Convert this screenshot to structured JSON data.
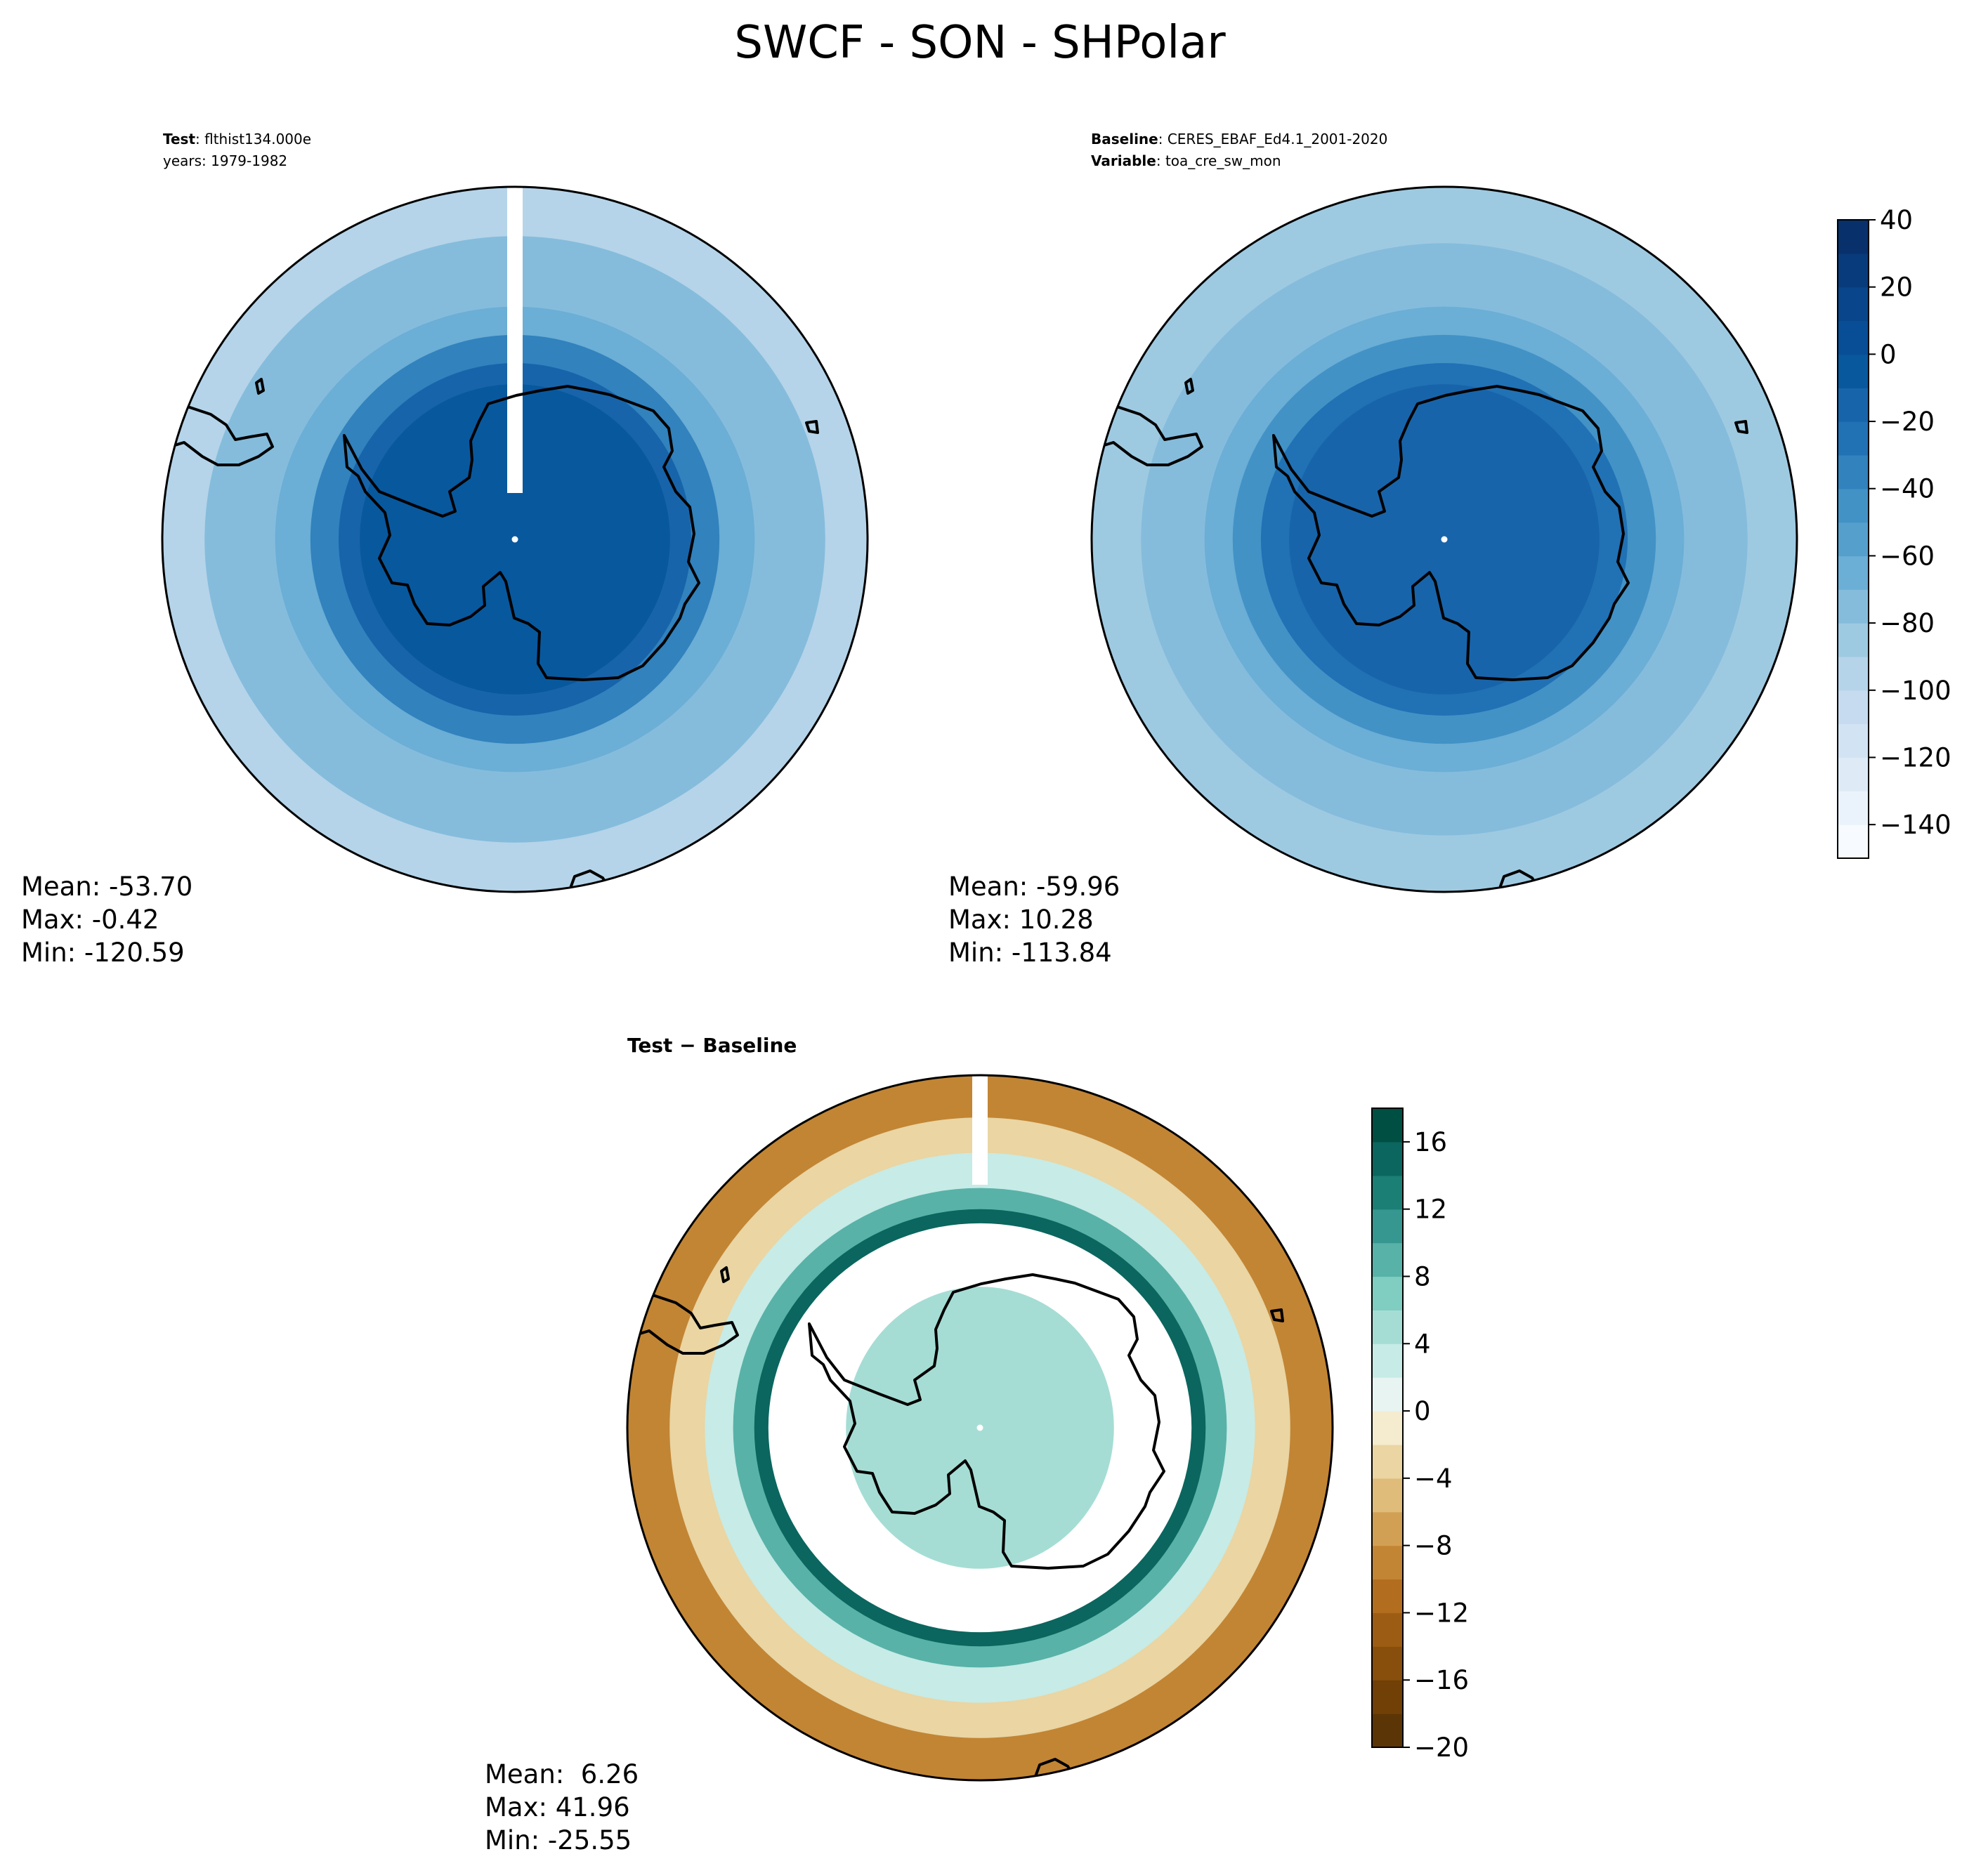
{
  "title": "SWCF - SON - SHPolar",
  "chart_data": [
    {
      "type": "polar-contour-map",
      "panel": "test",
      "header": [
        {
          "bold": "Test",
          "text": ": flthist134.000e"
        },
        {
          "bold": "",
          "text": "years: 1979-1982"
        }
      ],
      "stats": {
        "mean": "Mean: -53.70",
        "max": "Max: -0.42",
        "min": "Min: -120.59"
      },
      "rings": [
        {
          "value": -95,
          "rx": 0.49,
          "ry": 0.49
        },
        {
          "value": -75,
          "rx": 0.44,
          "ry": 0.43
        },
        {
          "value": -70,
          "rx": 0.34,
          "ry": 0.33
        },
        {
          "value": -40,
          "rx": 0.29,
          "ry": 0.29
        },
        {
          "value": -20,
          "rx": 0.25,
          "ry": 0.25
        },
        {
          "value": -10,
          "rx": 0.22,
          "ry": 0.22
        }
      ],
      "mask_gap": true
    },
    {
      "type": "polar-contour-map",
      "panel": "baseline",
      "header": [
        {
          "bold": "Baseline",
          "text": ": CERES_EBAF_Ed4.1_2001-2020"
        },
        {
          "bold": "Variable",
          "text": ": toa_cre_sw_mon"
        }
      ],
      "stats": {
        "mean": "Mean: -59.96",
        "max": "Max: 10.28",
        "min": "Min: -113.84"
      },
      "rings": [
        {
          "value": -90,
          "rx": 0.49,
          "ry": 0.49
        },
        {
          "value": -78,
          "rx": 0.43,
          "ry": 0.42
        },
        {
          "value": -68,
          "rx": 0.34,
          "ry": 0.33
        },
        {
          "value": -45,
          "rx": 0.3,
          "ry": 0.29
        },
        {
          "value": -25,
          "rx": 0.26,
          "ry": 0.25
        },
        {
          "value": -12,
          "rx": 0.22,
          "ry": 0.22
        }
      ],
      "mask_gap": false,
      "colorbar": {
        "min": -150,
        "max": 40,
        "step": 10,
        "ticks": [
          40,
          20,
          0,
          -20,
          -40,
          -60,
          -80,
          -100,
          -120,
          -140
        ],
        "tick_labels": [
          "40",
          "20",
          "0",
          "−20",
          "−40",
          "−60",
          "−80",
          "−100",
          "−120",
          "−140"
        ],
        "colors": [
          "#f7fbff",
          "#eaf3fb",
          "#deebf7",
          "#d2e3f3",
          "#c6dbef",
          "#b5d4e9",
          "#9ecae1",
          "#85bcdc",
          "#6baed6",
          "#559fcd",
          "#4292c6",
          "#3182bd",
          "#2171b5",
          "#1864aa",
          "#08589e",
          "#084e96",
          "#08458a",
          "#083b7c",
          "#08306b"
        ]
      }
    },
    {
      "type": "polar-contour-map",
      "panel": "difference",
      "header": [
        {
          "bold": "Test − Baseline",
          "text": ""
        }
      ],
      "stats": {
        "mean": "Mean:  6.26",
        "max": "Max: 41.96",
        "min": "Min: -25.55"
      },
      "rings": [
        {
          "value": -9,
          "rx": 0.5,
          "ry": 0.5
        },
        {
          "value": -3,
          "rx": 0.44,
          "ry": 0.44
        },
        {
          "value": 3,
          "rx": 0.39,
          "ry": 0.39
        },
        {
          "value": 9,
          "rx": 0.35,
          "ry": 0.34
        },
        {
          "value": 15,
          "rx": 0.32,
          "ry": 0.31
        },
        {
          "value": null,
          "rx": 0.3,
          "ry": 0.29
        },
        {
          "value": 4,
          "rx": 0.19,
          "ry": 0.2
        }
      ],
      "mask_gap": true,
      "colorbar": {
        "min": -20,
        "max": 18,
        "step": 2,
        "ticks": [
          16,
          12,
          8,
          4,
          0,
          -4,
          -8,
          -12,
          -16,
          -20
        ],
        "tick_labels": [
          "16",
          "12",
          "8",
          "4",
          "0",
          "−4",
          "−8",
          "−12",
          "−16",
          "−20"
        ],
        "colors": [
          "#5b3505",
          "#704006",
          "#874e0c",
          "#9c5c13",
          "#b26d1f",
          "#c28534",
          "#d2a054",
          "#dfbc7a",
          "#ead5a3",
          "#f5ebcf",
          "#e8f4f2",
          "#c7ebe6",
          "#a5ddd4",
          "#80cdc1",
          "#58b2a8",
          "#35978f",
          "#1b7f76",
          "#0a665e",
          "#004f43"
        ]
      }
    }
  ]
}
